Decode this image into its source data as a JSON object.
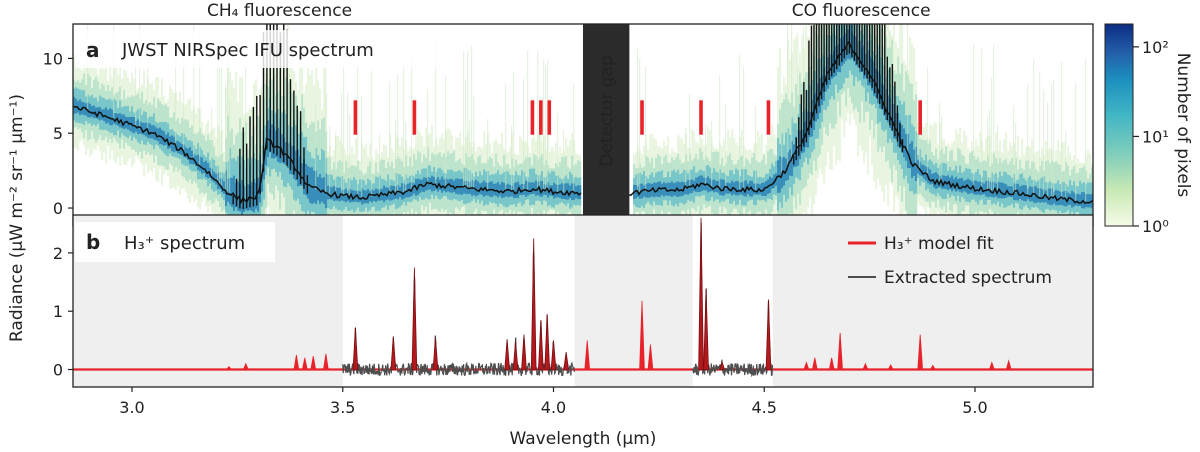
{
  "chart_data": [
    {
      "panel": "a",
      "type": "heatmap",
      "title": "JWST NIRSpec IFU spectrum",
      "xlim": [
        2.86,
        5.28
      ],
      "ylim": [
        -1.2,
        12.3
      ],
      "yticks": [
        0,
        5,
        10
      ],
      "top_labels": [
        {
          "text": "CH₄ fluorescence",
          "x": 3.35
        },
        {
          "text": "CO fluorescence",
          "x": 4.73
        }
      ],
      "detector_gap": {
        "x0": 4.07,
        "x1": 4.18,
        "label": "Detector gap"
      },
      "h3_line_markers": [
        3.53,
        3.67,
        3.95,
        3.97,
        3.99,
        4.21,
        4.35,
        4.51,
        4.87
      ],
      "median_spectrum": {
        "x": [
          2.86,
          2.95,
          3.05,
          3.12,
          3.18,
          3.22,
          3.26,
          3.3,
          3.32,
          3.35,
          3.38,
          3.42,
          3.46,
          3.5,
          3.55,
          3.6,
          3.65,
          3.7,
          3.8,
          3.9,
          3.95,
          4.0,
          4.06,
          4.18,
          4.25,
          4.3,
          4.35,
          4.4,
          4.5,
          4.55,
          4.6,
          4.65,
          4.7,
          4.75,
          4.8,
          4.85,
          4.9,
          5.0,
          5.1,
          5.2,
          5.28
        ],
        "y": [
          6.8,
          6.0,
          5.0,
          3.8,
          2.4,
          1.2,
          0.5,
          0.8,
          4.5,
          4.0,
          3.0,
          1.4,
          1.0,
          0.8,
          0.7,
          0.9,
          1.1,
          1.6,
          1.3,
          1.1,
          1.3,
          1.1,
          1.0,
          1.0,
          1.2,
          1.2,
          1.6,
          1.3,
          1.2,
          2.5,
          5.0,
          9.0,
          11.0,
          9.0,
          6.0,
          3.0,
          1.8,
          1.3,
          1.0,
          0.6,
          0.4
        ]
      },
      "colorbar": {
        "label": "Number of pixels",
        "scale": "log",
        "ticks": [
          "10⁰",
          "10¹",
          "10²"
        ],
        "range": [
          1,
          180
        ],
        "colors": [
          "#f5fbe8",
          "#c7e9b4",
          "#7fcdbb",
          "#41b6c4",
          "#1d91c0",
          "#225ea8",
          "#0c2c84"
        ]
      }
    },
    {
      "panel": "b",
      "type": "line",
      "title": "H₃⁺ spectrum",
      "xlabel": "Wavelength (μm)",
      "xlim": [
        2.86,
        5.28
      ],
      "ylim": [
        -0.3,
        2.65
      ],
      "xticks": [
        3.0,
        3.5,
        4.0,
        4.5,
        5.0
      ],
      "xtick_labels": [
        "3.0",
        "3.5",
        "4.0",
        "4.5",
        "5.0"
      ],
      "yticks": [
        0,
        1,
        2
      ],
      "shaded_regions": [
        [
          2.86,
          3.5
        ],
        [
          4.05,
          4.33
        ],
        [
          4.52,
          5.28
        ]
      ],
      "legend": {
        "position": "top-right",
        "entries": [
          {
            "label": "H₃⁺ model fit",
            "color": "#e8232a"
          },
          {
            "label": "Extracted spectrum",
            "color": "#4d4d4d"
          }
        ]
      },
      "extracted_ranges": [
        [
          3.5,
          4.05
        ],
        [
          4.33,
          4.52
        ]
      ],
      "model_peaks": [
        {
          "x": 3.23,
          "y": 0.05
        },
        {
          "x": 3.27,
          "y": 0.1
        },
        {
          "x": 3.39,
          "y": 0.25
        },
        {
          "x": 3.41,
          "y": 0.2
        },
        {
          "x": 3.43,
          "y": 0.23
        },
        {
          "x": 3.46,
          "y": 0.27
        },
        {
          "x": 3.53,
          "y": 0.72
        },
        {
          "x": 3.62,
          "y": 0.57
        },
        {
          "x": 3.67,
          "y": 1.75
        },
        {
          "x": 3.72,
          "y": 0.55
        },
        {
          "x": 3.89,
          "y": 0.52
        },
        {
          "x": 3.91,
          "y": 0.48
        },
        {
          "x": 3.93,
          "y": 0.6
        },
        {
          "x": 3.953,
          "y": 2.25
        },
        {
          "x": 3.97,
          "y": 0.85
        },
        {
          "x": 3.985,
          "y": 0.95
        },
        {
          "x": 4.0,
          "y": 0.5
        },
        {
          "x": 4.03,
          "y": 0.3
        },
        {
          "x": 4.08,
          "y": 0.5
        },
        {
          "x": 4.21,
          "y": 1.18
        },
        {
          "x": 4.23,
          "y": 0.43
        },
        {
          "x": 4.35,
          "y": 2.6
        },
        {
          "x": 4.362,
          "y": 1.38
        },
        {
          "x": 4.4,
          "y": 0.13
        },
        {
          "x": 4.51,
          "y": 1.2
        },
        {
          "x": 4.6,
          "y": 0.12
        },
        {
          "x": 4.62,
          "y": 0.2
        },
        {
          "x": 4.66,
          "y": 0.2
        },
        {
          "x": 4.68,
          "y": 0.63
        },
        {
          "x": 4.74,
          "y": 0.1
        },
        {
          "x": 4.8,
          "y": 0.08
        },
        {
          "x": 4.87,
          "y": 0.6
        },
        {
          "x": 4.9,
          "y": 0.07
        },
        {
          "x": 5.04,
          "y": 0.12
        },
        {
          "x": 5.08,
          "y": 0.15
        }
      ]
    }
  ],
  "shared_ylabel": "Radiance (μW m⁻² sr⁻¹ μm⁻¹)",
  "panel_letters": {
    "a": "a",
    "b": "b"
  }
}
